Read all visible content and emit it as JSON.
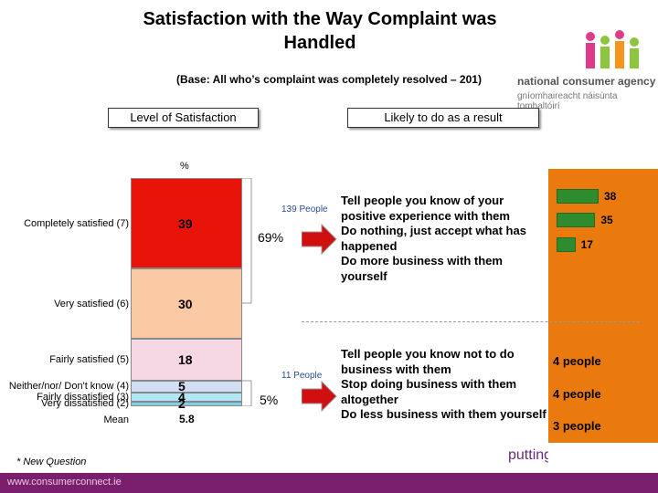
{
  "title": "Satisfaction with the Way Complaint was Handled",
  "base_note": "(Base: All who’s complaint was completely resolved – 201)",
  "logo": {
    "name": "national consumer agency",
    "sub": "gníomhaireacht náisúnta tomhaltóirí"
  },
  "header_left": "Level of Satisfaction",
  "header_right": "Likely to do as a result",
  "pct_symbol": "%",
  "chart_data": [
    {
      "type": "stacked-bar",
      "title": "Level of Satisfaction",
      "unit": "%",
      "categories": [
        "Completely satisfied (7)",
        "Very satisfied (6)",
        "Fairly satisfied (5)",
        "Neither/nor/ Don't know (4)",
        "Fairly dissatisfied (3)",
        "Very dissatisfied (2)"
      ],
      "values": [
        39,
        30,
        18,
        5,
        4,
        2
      ],
      "colors": [
        "#e8140a",
        "#fbc9a3",
        "#f6d8e4",
        "#d2dff2",
        "#b3e6f4",
        "#7fcfe8"
      ],
      "labels": [
        "39",
        "30",
        "18",
        "5",
        "4",
        "2"
      ],
      "mean_label": "Mean",
      "mean_value": "5.8"
    },
    {
      "type": "bar",
      "title": "Likely to do as a result (satisfied)",
      "unit": "%",
      "categories": [
        "Tell people you know of your positive experience with them",
        "Do nothing, just accept what has happened",
        "Do more business with them yourself"
      ],
      "values": [
        38,
        35,
        17
      ]
    }
  ],
  "satisfied_group": {
    "people": "139 People",
    "percent": "69%"
  },
  "dissatisfied_group": {
    "people": "11 People",
    "percent": "5%"
  },
  "satisfied_actions": [
    "Tell people you know of your positive experience with them",
    "Do nothing, just accept what has happened",
    "Do more business with them yourself"
  ],
  "dissatisfied_actions": [
    {
      "text": "Tell people you know not to do business with them",
      "value": "4 people"
    },
    {
      "text": "Stop doing business with them altogether",
      "value": "4 people"
    },
    {
      "text": "Do less business with them yourself",
      "value": "3 people"
    }
  ],
  "new_question_note": "* New Question",
  "footer_url": "www.consumerconnect.ie",
  "footer_tagline": "putting c",
  "colors": {
    "accent_orange": "#ea7a0e",
    "bar_green": "#2e8b2e",
    "footer_purple": "#7a1f6e",
    "arrow_red": "#d01010"
  }
}
